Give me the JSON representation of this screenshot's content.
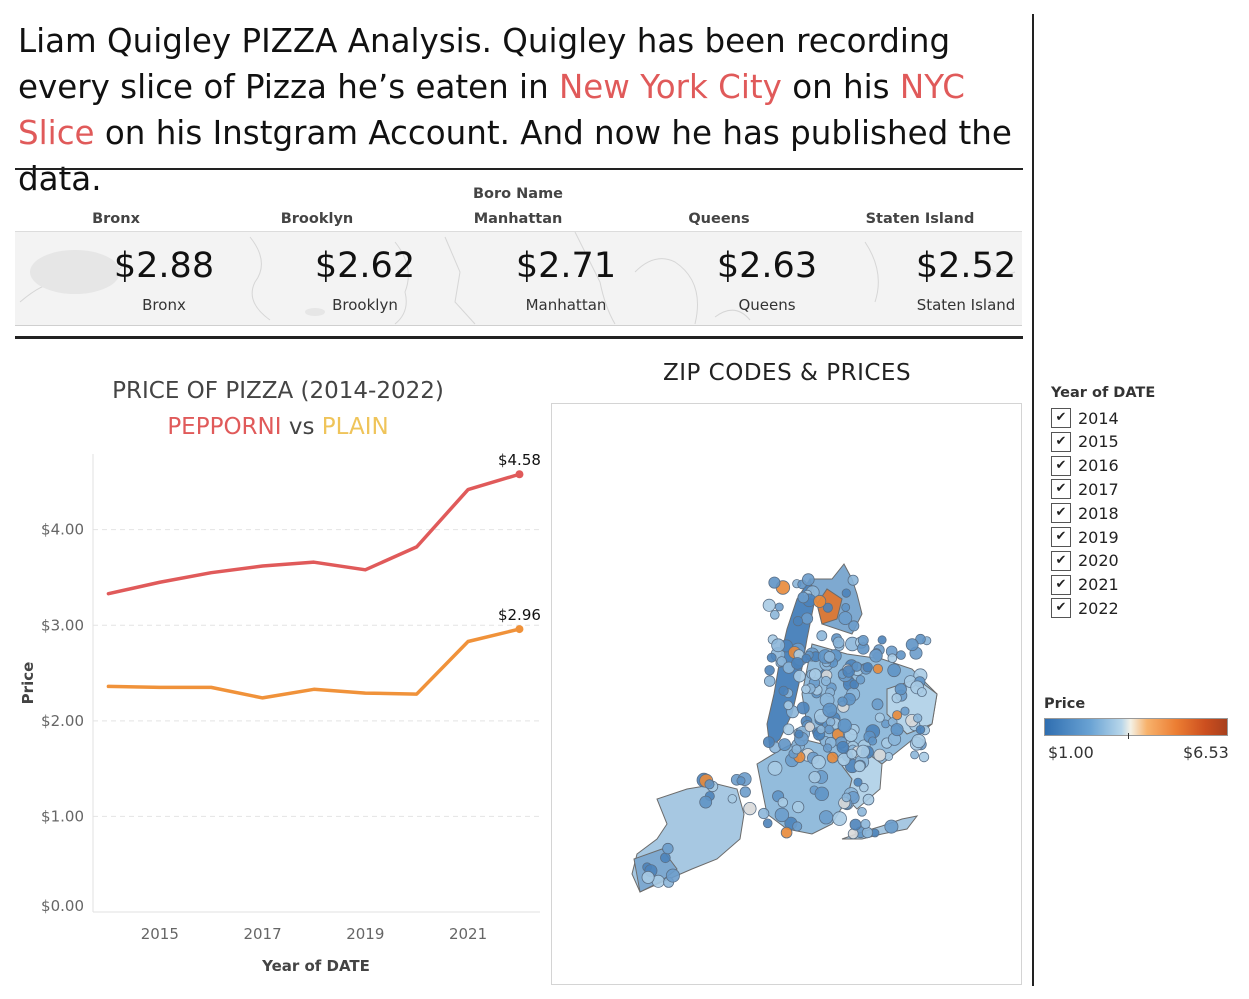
{
  "headline": {
    "part1": "Liam Quigley PIZZA Analysis.  Quigley has been recording every slice of Pizza he’s eaten in ",
    "highlight1": "New York City",
    "part2": " on his ",
    "highlight2": "NYC Slice",
    "part3": " on his Instgram Account. And now he has published the data."
  },
  "boro": {
    "header_label": "Boro Name",
    "items": [
      {
        "name": "Bronx",
        "price": "$2.88"
      },
      {
        "name": "Brooklyn",
        "price": "$2.62"
      },
      {
        "name": "Manhattan",
        "price": "$2.71"
      },
      {
        "name": "Queens",
        "price": "$2.63"
      },
      {
        "name": "Staten Island",
        "price": "$2.52"
      }
    ]
  },
  "line_chart": {
    "title": "PRICE OF PIZZA (2014-2022)",
    "sub_pep": "PEPPORNI",
    "sub_vs": " vs ",
    "sub_plain": "PLAIN"
  },
  "chart_data": {
    "type": "line",
    "title": "PRICE OF PIZZA (2014-2022)",
    "xlabel": "Year of DATE",
    "ylabel": "Price",
    "x": [
      2014,
      2015,
      2016,
      2017,
      2018,
      2019,
      2020,
      2021,
      2022
    ],
    "x_ticks": [
      2015,
      2017,
      2019,
      2021
    ],
    "y_ticks": [
      "$0.00",
      "$1.00",
      "$2.00",
      "$3.00",
      "$4.00"
    ],
    "ylim": [
      0,
      4.75
    ],
    "xlim": [
      2013.7,
      2022.4
    ],
    "grid": true,
    "series": [
      {
        "name": "PEPPORNI",
        "color": "#e05a5a",
        "values": [
          3.33,
          3.45,
          3.55,
          3.62,
          3.66,
          3.58,
          3.82,
          4.42,
          4.58
        ],
        "end_label": "$4.58"
      },
      {
        "name": "PLAIN",
        "color": "#f0923a",
        "values": [
          2.36,
          2.35,
          2.35,
          2.24,
          2.33,
          2.29,
          2.28,
          2.83,
          2.96
        ],
        "end_label": "$2.96"
      }
    ]
  },
  "map": {
    "title": "ZIP CODES & PRICES"
  },
  "year_filter": {
    "title": "Year of DATE",
    "check_glyph": "✔",
    "years": [
      "2014",
      "2015",
      "2016",
      "2017",
      "2018",
      "2019",
      "2020",
      "2021",
      "2022"
    ]
  },
  "price_legend": {
    "title": "Price",
    "min": "$1.00",
    "max": "$6.53"
  }
}
